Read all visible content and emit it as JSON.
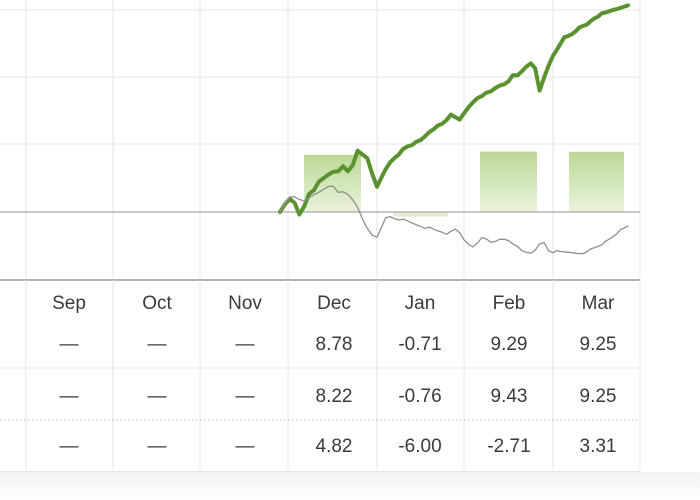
{
  "chart_data": {
    "type": "line",
    "title": "",
    "xlabel": "",
    "ylabel": "",
    "categories": [
      "Sep",
      "Oct",
      "Nov",
      "Dec",
      "Jan",
      "Feb",
      "Mar"
    ],
    "grid": true,
    "legend": "none",
    "colors": {
      "fund_line": "#5b9230",
      "benchmark_line": "#8f8f8f",
      "bar": "#cfe3b3",
      "grid": "#e4e4e4",
      "zero_line": "#b5b5b5"
    },
    "monthly_bars": [
      null,
      null,
      null,
      8.78,
      -0.71,
      9.29,
      9.25
    ],
    "series": [
      {
        "role": "fund",
        "x": [
          0,
          0.05,
          0.1,
          0.15,
          0.2,
          0.25,
          0.3,
          0.35,
          0.4,
          0.45,
          0.5,
          0.55,
          0.6,
          0.65,
          0.7,
          0.75,
          0.8,
          0.85,
          0.9,
          0.95,
          1,
          1.05,
          1.1,
          1.15,
          1.2,
          1.25,
          1.3,
          1.35,
          1.4,
          1.45,
          1.5,
          1.55,
          1.6,
          1.65,
          1.7,
          1.75,
          1.8,
          1.85,
          1.9,
          1.95,
          2,
          2.05,
          2.1,
          2.15,
          2.2,
          2.25,
          2.3,
          2.35,
          2.4,
          2.45,
          2.5,
          2.55,
          2.6,
          2.65,
          2.7,
          2.75,
          2.8,
          2.85,
          2.9,
          2.95,
          3,
          3.05,
          3.1,
          3.15,
          3.2,
          3.25,
          3.3,
          3.35,
          3.4,
          3.45,
          3.5,
          3.55,
          3.6,
          3.65,
          3.7,
          3.75,
          3.8,
          3.85,
          3.9,
          3.95,
          4
        ],
        "values": [
          0,
          1.8,
          3.1,
          2.2,
          -0.6,
          1.4,
          4.3,
          5.2,
          7.2,
          8.1,
          8.9,
          9.6,
          9.7,
          10.9,
          9.7,
          11.2,
          14.6,
          13.7,
          12.8,
          9.2,
          6.0,
          8.2,
          10.2,
          11.8,
          12.8,
          13.7,
          15.0,
          15.6,
          15.9,
          16.7,
          17.1,
          18.0,
          19.0,
          19.7,
          20.6,
          21.0,
          21.9,
          23.2,
          22.6,
          22.0,
          23.5,
          24.9,
          26.1,
          27.1,
          27.6,
          28.4,
          28.7,
          29.5,
          30.1,
          30.4,
          31.1,
          32.6,
          32.5,
          33.5,
          34.6,
          35.4,
          34.2,
          28.9,
          32.0,
          34.8,
          37.2,
          38.6,
          40.1,
          41.6,
          41.9,
          42.3,
          43.0,
          43.9,
          44.3,
          44.6,
          45.4,
          46.1,
          46.5,
          47.3,
          47.5,
          47.8,
          48.1,
          48.3,
          48.6,
          48.9,
          49.2
        ]
      },
      {
        "role": "benchmark",
        "x": [
          0,
          0.05,
          0.1,
          0.15,
          0.2,
          0.25,
          0.3,
          0.35,
          0.4,
          0.45,
          0.5,
          0.55,
          0.6,
          0.65,
          0.7,
          0.75,
          0.8,
          0.85,
          0.9,
          0.95,
          1,
          1.05,
          1.1,
          1.15,
          1.2,
          1.25,
          1.3,
          1.35,
          1.4,
          1.45,
          1.5,
          1.55,
          1.6,
          1.65,
          1.7,
          1.75,
          1.8,
          1.85,
          1.9,
          1.95,
          2,
          2.05,
          2.1,
          2.15,
          2.2,
          2.25,
          2.3,
          2.35,
          2.4,
          2.45,
          2.5,
          2.55,
          2.6,
          2.65,
          2.7,
          2.75,
          2.8,
          2.85,
          2.9,
          2.95,
          3,
          3.05,
          3.1,
          3.15,
          3.2,
          3.25,
          3.3,
          3.35,
          3.4,
          3.45,
          3.5,
          3.55,
          3.6,
          3.65,
          3.7,
          3.75,
          3.8,
          3.85,
          3.9,
          3.95,
          4
        ],
        "values": [
          0,
          1.9,
          3.6,
          3.6,
          3.0,
          2.6,
          3.4,
          4.1,
          4.7,
          5.4,
          6.1,
          6.1,
          4.7,
          4.8,
          4.2,
          2.9,
          1.1,
          -1.6,
          -3.9,
          -5.5,
          -6.0,
          -3.7,
          -1.4,
          -1.1,
          -1.6,
          -1.9,
          -1.7,
          -2.1,
          -2.6,
          -3.0,
          -3.4,
          -3.9,
          -3.6,
          -4.1,
          -4.5,
          -4.8,
          -5.3,
          -4.6,
          -4.1,
          -4.9,
          -6.6,
          -7.7,
          -8.3,
          -7.4,
          -6.1,
          -6.4,
          -7.2,
          -7.0,
          -6.5,
          -6.5,
          -6.8,
          -7.6,
          -8.2,
          -9.2,
          -9.6,
          -9.8,
          -9.1,
          -7.6,
          -7.3,
          -9.2,
          -9.7,
          -9.2,
          -9.4,
          -9.5,
          -9.6,
          -9.7,
          -9.8,
          -9.9,
          -9.9,
          -9.5,
          -8.8,
          -8.5,
          -8.2,
          -7.8,
          -7.0,
          -6.4,
          -5.9,
          -5.2,
          -4.2,
          -3.8,
          -3.3
        ]
      }
    ],
    "ylim": [
      -15,
      50
    ]
  },
  "table": {
    "columns": [
      "Sep",
      "Oct",
      "Nov",
      "Dec",
      "Jan",
      "Feb",
      "Mar"
    ],
    "rows": [
      [
        "—",
        "—",
        "—",
        "8.78",
        "-0.71",
        "9.29",
        "9.25"
      ],
      [
        "—",
        "—",
        "—",
        "8.22",
        "-0.76",
        "9.43",
        "9.25"
      ],
      [
        "—",
        "—",
        "—",
        "4.82",
        "-6.00",
        "-2.71",
        "3.31"
      ]
    ]
  }
}
